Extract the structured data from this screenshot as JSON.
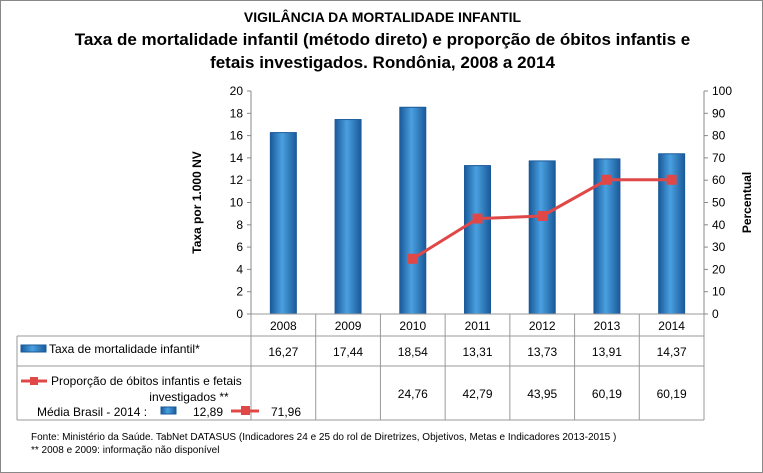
{
  "chart_data": {
    "type": "bar+line",
    "supertitle": "VIGILÂNCIA DA MORTALIDADE INFANTIL",
    "title": "Taxa de mortalidade infantil (método direto) e proporção de óbitos infantis e fetais investigados. Rondônia, 2008 a 2014",
    "title_lines": [
      "Taxa de mortalidade infantil (método direto) e proporção de óbitos infantis e",
      "fetais investigados. Rondônia, 2008 a 2014"
    ],
    "categories": [
      "2008",
      "2009",
      "2010",
      "2011",
      "2012",
      "2013",
      "2014"
    ],
    "ylabel_left": "Taxa por 1.000 NV",
    "ylabel_right": "Percentual",
    "ylim_left": [
      0,
      20
    ],
    "ylim_right": [
      0,
      100
    ],
    "yticks_left": [
      "0",
      "2",
      "4",
      "6",
      "8",
      "10",
      "12",
      "14",
      "16",
      "18",
      "20"
    ],
    "yticks_right": [
      "0",
      "10",
      "20",
      "30",
      "40",
      "50",
      "60",
      "70",
      "80",
      "90",
      "100"
    ],
    "series": [
      {
        "name": "Taxa de mortalidade infantil*",
        "type": "bar",
        "axis": "left",
        "color": "#2a7bc0",
        "values": [
          16.27,
          17.44,
          18.54,
          13.31,
          13.73,
          13.91,
          14.37
        ],
        "labels": [
          "16,27",
          "17,44",
          "18,54",
          "13,31",
          "13,73",
          "13,91",
          "14,37"
        ]
      },
      {
        "name": "Proporção de óbitos infantis e fetais investigados **",
        "name_lines": [
          "Proporção de óbitos infantis e fetais",
          "investigados **"
        ],
        "type": "line",
        "axis": "right",
        "color": "#e04848",
        "values": [
          null,
          null,
          24.76,
          42.79,
          43.95,
          60.19,
          60.19
        ],
        "labels": [
          "",
          "",
          "24,76",
          "42,79",
          "43,95",
          "60,19",
          "60,19"
        ]
      }
    ],
    "grid": false,
    "legend": "data-table"
  },
  "brasil": {
    "label": "Média Brasil - 2014 :",
    "bar_value": "12,89",
    "line_value": "71,96"
  },
  "footnotes": {
    "source": "Fonte: Ministério da Saúde. TabNet DATASUS (Indicadores 24 e 25 do rol de Diretrizes, Objetivos, Metas e Indicadores 2013-2015 )",
    "note": "** 2008 e 2009: informação não disponível"
  }
}
